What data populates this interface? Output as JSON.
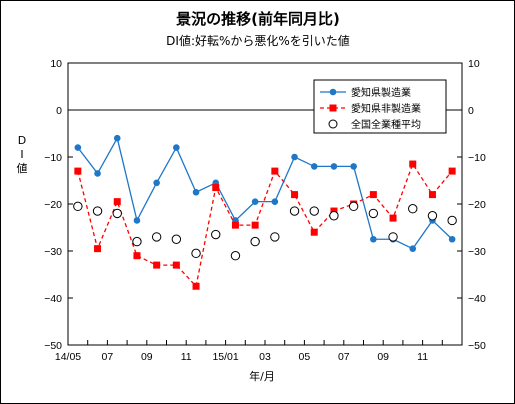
{
  "chart_data": {
    "type": "line",
    "title": "景況の推移(前年同月比)",
    "subtitle": "DI値:好転%から悪化%を引いた値",
    "xlabel": "年/月",
    "ylabel": "DI値",
    "ylim": [
      -50,
      10
    ],
    "yticks": [
      10,
      0,
      -10,
      -20,
      -30,
      -40,
      -50
    ],
    "y_tick_labels": [
      "10",
      "0",
      "−10",
      "−20",
      "−30",
      "−40",
      "−50"
    ],
    "x_tick_labels": [
      {
        "index": 0,
        "label": "14/05"
      },
      {
        "index": 2,
        "label": "07"
      },
      {
        "index": 4,
        "label": "09"
      },
      {
        "index": 6,
        "label": "11"
      },
      {
        "index": 8,
        "label": "15/01"
      },
      {
        "index": 10,
        "label": "03"
      },
      {
        "index": 12,
        "label": "05"
      },
      {
        "index": 14,
        "label": "07"
      },
      {
        "index": 16,
        "label": "09"
      },
      {
        "index": 18,
        "label": "11"
      }
    ],
    "grid": false,
    "legend": "top-right",
    "series": [
      {
        "name": "愛知県製造業",
        "color": "#1f77c8",
        "style": "line-circle",
        "values": [
          -8,
          -13.5,
          -6,
          -23.5,
          -15.5,
          -8,
          -17.5,
          -15.5,
          -23.5,
          -19.5,
          -19.5,
          -10,
          -12,
          -12,
          -12,
          -27.5,
          -27.5,
          -29.5,
          -23.5,
          -27.5
        ]
      },
      {
        "name": "愛知県非製造業",
        "color": "#ff0000",
        "style": "dashed-square",
        "values": [
          -13,
          -29.5,
          -19.5,
          -31,
          -33,
          -33,
          -37.5,
          -16.5,
          -24.5,
          -24.5,
          -13,
          -18,
          -26,
          -21.5,
          -20,
          -18,
          -23,
          -11.5,
          -18,
          -13
        ]
      },
      {
        "name": "全国全業種平均",
        "color": "#000000",
        "style": "open-circle",
        "values": [
          -20.5,
          -21.5,
          -22,
          -28,
          -27,
          -27.5,
          -30.5,
          -26.5,
          -31,
          -28,
          -27,
          -21.5,
          -21.5,
          -22.5,
          -20.5,
          -22,
          -27,
          -21,
          -22.5,
          -23.5
        ]
      }
    ]
  }
}
